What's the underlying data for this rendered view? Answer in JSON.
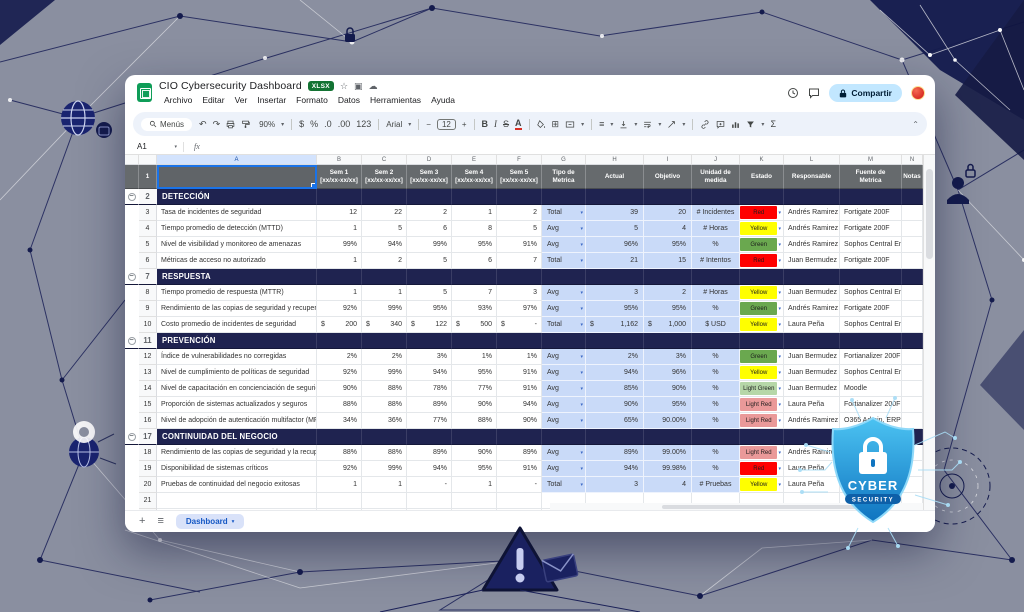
{
  "titlebar": {
    "title": "CIO Cybersecurity Dashboard",
    "file_badge": "XLSX",
    "share_label": "Compartir"
  },
  "menu_items": [
    "Archivo",
    "Editar",
    "Ver",
    "Insertar",
    "Formato",
    "Datos",
    "Herramientas",
    "Ayuda"
  ],
  "toolbar": {
    "search_label": "Menús",
    "zoom_value": "90%",
    "currency": "$",
    "percent": "%",
    "dec_down": ".0",
    "dec_up": ".00",
    "plain_format": "123",
    "font_name": "Arial",
    "font_size": "12",
    "bold": "B",
    "italic": "I",
    "strike": "S",
    "text_color": "A",
    "sigma": "Σ"
  },
  "formula_bar": {
    "cell_ref": "A1",
    "fx_label": "fx"
  },
  "bottombar": {
    "sheet_name": "Dashboard"
  },
  "sheet": {
    "col_letters": [
      "A",
      "B",
      "C",
      "D",
      "E",
      "F",
      "G",
      "H",
      "I",
      "J",
      "K",
      "L",
      "M",
      "N"
    ],
    "header_row": {
      "weeks": [
        {
          "t": "Sem 1",
          "s": "[xx/xx-xx/xx]"
        },
        {
          "t": "Sem 2",
          "s": "[xx/xx-xx/xx]"
        },
        {
          "t": "Sem 3",
          "s": "[xx/xx-xx/xx]"
        },
        {
          "t": "Sem 4",
          "s": "[xx/xx-xx/xx]"
        },
        {
          "t": "Sem 5",
          "s": "[xx/xx-xx/xx]"
        }
      ],
      "tipo": {
        "t": "Tipo de",
        "s": "Metrica"
      },
      "actual": "Actual",
      "objetivo": "Objetivo",
      "unidad": {
        "t": "Unidad de",
        "s": "medida"
      },
      "estado": "Estado",
      "responsable": "Responsable",
      "fuente": {
        "t": "Fuente de",
        "s": "Metrica"
      },
      "notas": "Notas"
    },
    "estado_colors": {
      "Red": "#ff0000",
      "Yellow": "#ffff00",
      "Green": "#6aa84f",
      "Light Green": "#b6d7a8",
      "Light Red": "#ea9999"
    },
    "sections": [
      {
        "title": "DETECCIÓN",
        "metrics": [
          {
            "name": "Tasa de incidentes de seguridad",
            "weeks": [
              "12",
              "22",
              "2",
              "1",
              "2"
            ],
            "tipo": "Total",
            "actual": "39",
            "objetivo": "20",
            "unidad": "# Incidentes",
            "estado": "Red",
            "responsable": "Andrés Ramirez",
            "fuente": "Fortigate 200F",
            "notas": ""
          },
          {
            "name": "Tiempo promedio de detección (MTTD)",
            "weeks": [
              "1",
              "5",
              "6",
              "8",
              "5"
            ],
            "tipo": "Avg",
            "actual": "5",
            "objetivo": "4",
            "unidad": "# Horas",
            "estado": "Yellow",
            "responsable": "Andrés Ramirez",
            "fuente": "Fortigate 200F",
            "notas": ""
          },
          {
            "name": "Nivel de visibilidad y monitoreo de amenazas",
            "weeks": [
              "99%",
              "94%",
              "99%",
              "95%",
              "91%"
            ],
            "tipo": "Avg",
            "actual": "96%",
            "objetivo": "95%",
            "unidad": "%",
            "estado": "Green",
            "responsable": "Andrés Ramirez",
            "fuente": "Sophos Central Endpoint",
            "notas": ""
          },
          {
            "name": "Métricas de acceso no autorizado",
            "weeks": [
              "1",
              "2",
              "5",
              "6",
              "7"
            ],
            "tipo": "Total",
            "actual": "21",
            "objetivo": "15",
            "unidad": "# Intentos",
            "estado": "Red",
            "responsable": "Juan Bermudez",
            "fuente": "Fortigate 200F",
            "notas": ""
          }
        ]
      },
      {
        "title": "RESPUESTA",
        "metrics": [
          {
            "name": "Tiempo promedio de respuesta (MTTR)",
            "weeks": [
              "1",
              "1",
              "5",
              "7",
              "3"
            ],
            "tipo": "Avg",
            "actual": "3",
            "objetivo": "2",
            "unidad": "# Horas",
            "estado": "Yellow",
            "responsable": "Juan Bermudez",
            "fuente": "Sophos Central Endpoint",
            "notas": ""
          },
          {
            "name": "Rendimiento de las copias de seguridad y recuperac",
            "weeks": [
              "92%",
              "99%",
              "95%",
              "93%",
              "97%"
            ],
            "tipo": "Avg",
            "actual": "95%",
            "objetivo": "95%",
            "unidad": "%",
            "estado": "Green",
            "responsable": "Andrés Ramirez",
            "fuente": "Fortigate 200F",
            "notas": ""
          },
          {
            "name": "Costo promedio de incidentes de seguridad",
            "weeks": [
              "$ 200",
              "$ 340",
              "$ 122",
              "$ 500",
              "$ -"
            ],
            "tipo": "Total",
            "actual": "$ 1,162",
            "objetivo": "$ 1,000",
            "unidad": "$ USD",
            "estado": "Yellow",
            "responsable": "Laura Peña",
            "fuente": "Sophos Central Endpoint",
            "notas": ""
          }
        ]
      },
      {
        "title": "PREVENCIÓN",
        "metrics": [
          {
            "name": "Índice de vulnerabilidades no corregidas",
            "weeks": [
              "2%",
              "2%",
              "3%",
              "1%",
              "1%"
            ],
            "tipo": "Avg",
            "actual": "2%",
            "objetivo": "3%",
            "unidad": "%",
            "estado": "Green",
            "responsable": "Juan Bermudez",
            "fuente": "Fortianalizer 200F",
            "notas": ""
          },
          {
            "name": "Nivel de cumplimiento de políticas de seguridad",
            "weeks": [
              "92%",
              "99%",
              "94%",
              "95%",
              "91%"
            ],
            "tipo": "Avg",
            "actual": "94%",
            "objetivo": "96%",
            "unidad": "%",
            "estado": "Yellow",
            "responsable": "Juan Bermudez",
            "fuente": "Sophos Central Endpoint",
            "notas": ""
          },
          {
            "name": "Nivel de capacitación en concienciación de segurida",
            "weeks": [
              "90%",
              "88%",
              "78%",
              "77%",
              "91%"
            ],
            "tipo": "Avg",
            "actual": "85%",
            "objetivo": "90%",
            "unidad": "%",
            "estado": "Light Green",
            "responsable": "Juan Bermudez",
            "fuente": "Moodle",
            "notas": ""
          },
          {
            "name": "Proporción de sistemas actualizados y seguros",
            "weeks": [
              "88%",
              "88%",
              "89%",
              "90%",
              "94%"
            ],
            "tipo": "Avg",
            "actual": "90%",
            "objetivo": "95%",
            "unidad": "%",
            "estado": "Light Red",
            "responsable": "Laura Peña",
            "fuente": "Fortianalizer 200F",
            "notas": ""
          },
          {
            "name": "Nivel de adopción de autenticación multifactor (MFA",
            "weeks": [
              "34%",
              "36%",
              "77%",
              "88%",
              "90%"
            ],
            "tipo": "Avg",
            "actual": "65%",
            "objetivo": "90.00%",
            "unidad": "%",
            "estado": "Light Red",
            "responsable": "Andrés Ramirez",
            "fuente": "O365 Admin, ERP Admin,",
            "notas": ""
          }
        ]
      },
      {
        "title": "CONTINUIDAD DEL NEGOCIO",
        "metrics": [
          {
            "name": "Rendimiento de las copias de seguridad y la recupe",
            "weeks": [
              "88%",
              "88%",
              "89%",
              "90%",
              "89%"
            ],
            "tipo": "Avg",
            "actual": "89%",
            "objetivo": "99.00%",
            "unidad": "%",
            "estado": "Light Red",
            "responsable": "Andrés Ramirez",
            "fuente": "VEEAM",
            "notas": ""
          },
          {
            "name": "Disponibilidad de sistemas críticos",
            "weeks": [
              "92%",
              "99%",
              "94%",
              "95%",
              "91%"
            ],
            "tipo": "Avg",
            "actual": "94%",
            "objetivo": "99.98%",
            "unidad": "%",
            "estado": "Red",
            "responsable": "Laura Peña",
            "fuente": "VMWARE, HyperV",
            "notas": ""
          },
          {
            "name": "Pruebas de continuidad del negocio exitosas",
            "weeks": [
              "1",
              "1",
              "-",
              "1",
              "-"
            ],
            "tipo": "Total",
            "actual": "3",
            "objetivo": "4",
            "unidad": "# Pruebas",
            "estado": "Yellow",
            "responsable": "Laura Peña",
            "fuente": "Win Server Admin",
            "notas": ""
          }
        ]
      }
    ],
    "trailing_empty_rows": [
      21,
      22
    ]
  },
  "decor": {
    "shield_line1": "CYBER",
    "shield_line2": "SECURITY"
  }
}
